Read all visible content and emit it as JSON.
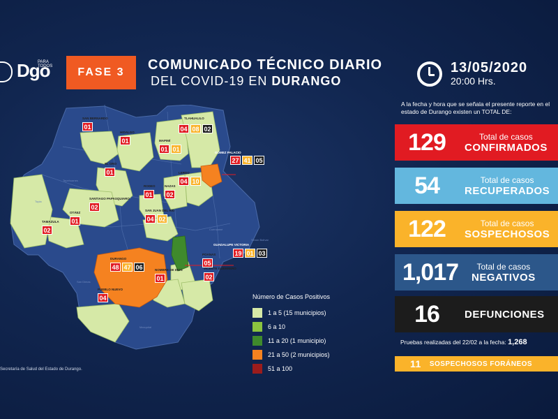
{
  "header": {
    "brand": "Dgo",
    "brand_small": "PARA TODOS",
    "phase": "FASE 3",
    "title_line1": "COMUNICADO TÉCNICO DIARIO",
    "title_line2_prefix": "DEL COVID-19 EN",
    "title_line2_state": "DURANGO",
    "date": "13/05/2020",
    "time": "20:00 Hrs."
  },
  "intro": "A la fecha y hora que se señala el presente reporte en el estado de Durango existen un TOTAL DE:",
  "stats": {
    "confirmados": {
      "value": "129",
      "label_top": "Total de casos",
      "label_bottom": "CONFIRMADOS",
      "color": "#e11b22"
    },
    "recuperados": {
      "value": "54",
      "label_top": "Total de casos",
      "label_bottom": "RECUPERADOS",
      "color": "#63b7de"
    },
    "sospechosos": {
      "value": "122",
      "label_top": "Total de casos",
      "label_bottom": "SOSPECHOSOS",
      "color": "#fab32a"
    },
    "negativos": {
      "value": "1,017",
      "label_top": "Total de casos",
      "label_bottom": "NEGATIVOS",
      "color": "#2c578a"
    },
    "defunciones": {
      "value": "16",
      "label": "DEFUNCIONES",
      "color": "#1c1c1c"
    }
  },
  "pruebas": {
    "text": "Pruebas realizadas del 22/02 a la fecha:",
    "value": "1,268"
  },
  "foraneos": {
    "value": "11",
    "label": "SOSPECHOSOS FORÁNEOS"
  },
  "legend": {
    "title": "Número de Casos Positivos",
    "items": [
      {
        "label": "1 a 5  (15 municipios)",
        "color": "#d6e9a7"
      },
      {
        "label": "6 a 10",
        "color": "#8bc43f"
      },
      {
        "label": "11 a 20  (1 municipio)",
        "color": "#3f8a2c"
      },
      {
        "label": "21 a 50  (2 municipios)",
        "color": "#f58220"
      },
      {
        "label": "51 a 100",
        "color": "#9b1c1c"
      }
    ]
  },
  "source": "Secretaría de Salud del Estado de Durango.",
  "municipios": [
    {
      "name": "SAN BERNARDO",
      "badges": [
        "01"
      ]
    },
    {
      "name": "HIDALGO",
      "badges": [
        "01"
      ]
    },
    {
      "name": "MAPIMÍ",
      "badges": [
        "01",
        "01"
      ]
    },
    {
      "name": "TLAHUALILO",
      "badges": [
        "04",
        "08",
        "02"
      ]
    },
    {
      "name": "GÓMEZ PALACIO",
      "badges": [
        "27",
        "41",
        "05"
      ]
    },
    {
      "name": "LERDO",
      "badges": [
        "04",
        "10"
      ]
    },
    {
      "name": "EL ORO",
      "badges": [
        "01"
      ]
    },
    {
      "name": "RODEO",
      "badges": [
        "01"
      ]
    },
    {
      "name": "NAZAS",
      "badges": [
        "02"
      ]
    },
    {
      "name": "SANTIAGO PAPASQUIARO",
      "badges": [
        "02"
      ]
    },
    {
      "name": "OTÁEZ",
      "badges": [
        "01"
      ]
    },
    {
      "name": "TAMAZULA",
      "badges": [
        "02"
      ]
    },
    {
      "name": "SAN JUAN DEL RÍO",
      "badges": [
        "04",
        "02"
      ]
    },
    {
      "name": "GUADALUPE VICTORIA",
      "badges": [
        "19",
        "01",
        "03"
      ]
    },
    {
      "name": "DURANGO",
      "badges": [
        "48",
        "47",
        "06"
      ]
    },
    {
      "name": "POANAS",
      "badges": [
        "05"
      ]
    },
    {
      "name": "NOMBRE DE DIOS",
      "badges": [
        "01"
      ]
    },
    {
      "name": "VICENTE GUERRERO",
      "badges": [
        "02"
      ]
    },
    {
      "name": "PUEBLO NUEVO",
      "badges": [
        "04"
      ]
    }
  ]
}
